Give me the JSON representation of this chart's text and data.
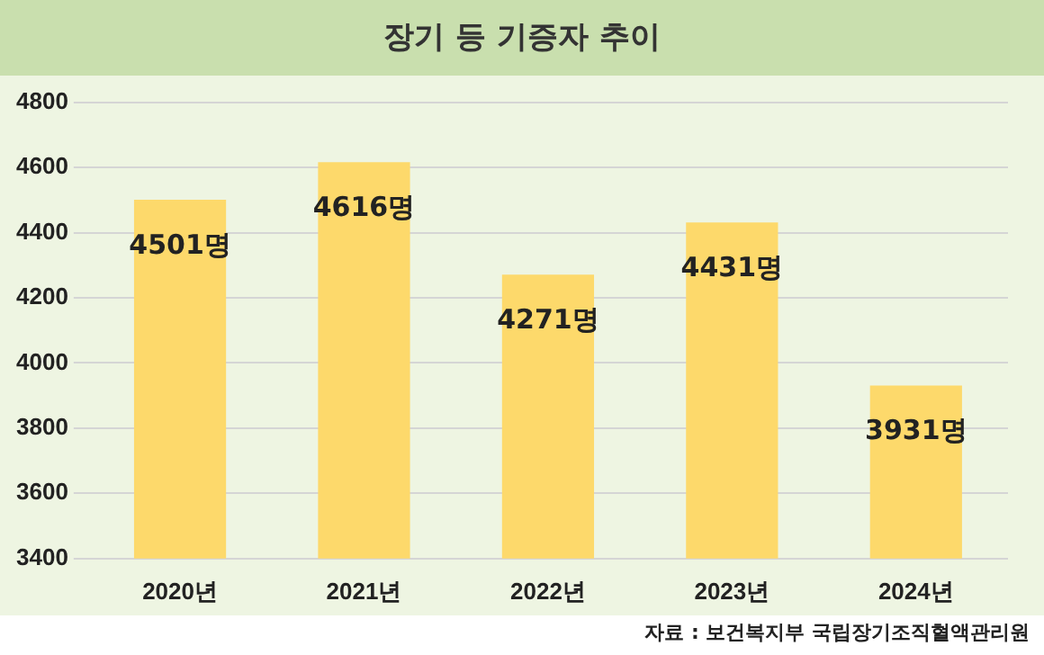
{
  "chart_data": {
    "type": "bar",
    "title": "장기 등 기증자 추이",
    "categories": [
      "2020년",
      "2021년",
      "2022년",
      "2023년",
      "2024년"
    ],
    "values": [
      4501,
      4616,
      4271,
      4431,
      3931
    ],
    "value_labels": [
      "4501명",
      "4616명",
      "4271명",
      "4431명",
      "3931명"
    ],
    "color": "#fdd96b",
    "ylim": [
      3400,
      4800
    ],
    "yticks": [
      3400,
      3600,
      3800,
      4000,
      4200,
      4400,
      4600,
      4800
    ],
    "grid": "y",
    "legend": false,
    "annotations": [
      "자료 : 보건복지부 국립장기조직혈액관리원"
    ]
  }
}
